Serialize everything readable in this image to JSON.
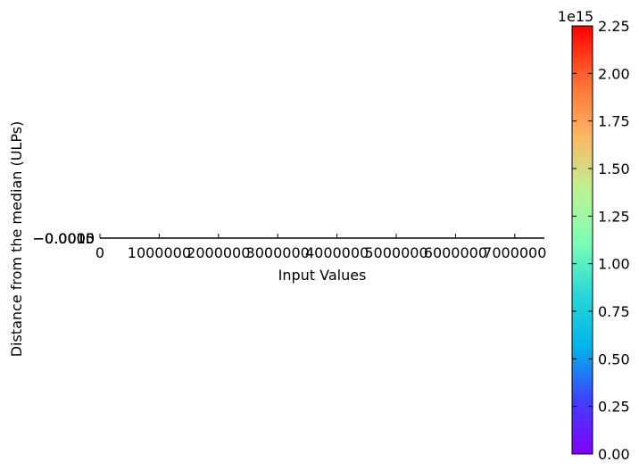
{
  "chart_data": {
    "type": "scatter",
    "title": "",
    "xlabel": "Input Values",
    "ylabel": "Distance from the median (ULPs)",
    "xlim": [
      0,
      7500000
    ],
    "x_ticks": [
      0,
      1000000,
      2000000,
      3000000,
      4000000,
      5000000,
      6000000,
      7000000
    ],
    "x_tick_labels": [
      "0",
      "1000000",
      "2000000",
      "3000000",
      "4000000",
      "5000000",
      "6000000",
      "7000000"
    ],
    "y_tick_labels": [
      "−0.0015",
      "−0.0010",
      "−0.0005",
      "0.0000",
      "0.0005",
      "0.0010",
      "0.0015"
    ],
    "series": [
      {
        "x": [],
        "y": []
      }
    ],
    "colorbar": {
      "colormap": "rainbow",
      "range": [
        0,
        2.25
      ],
      "ticks": [
        0.0,
        0.25,
        0.5,
        0.75,
        1.0,
        1.25,
        1.5,
        1.75,
        2.0,
        2.25
      ],
      "tick_labels": [
        "0.00",
        "0.25",
        "0.50",
        "0.75",
        "1.00",
        "1.25",
        "1.50",
        "1.75",
        "2.00",
        "2.25"
      ],
      "offset_label": "1e15"
    },
    "grid": false
  }
}
